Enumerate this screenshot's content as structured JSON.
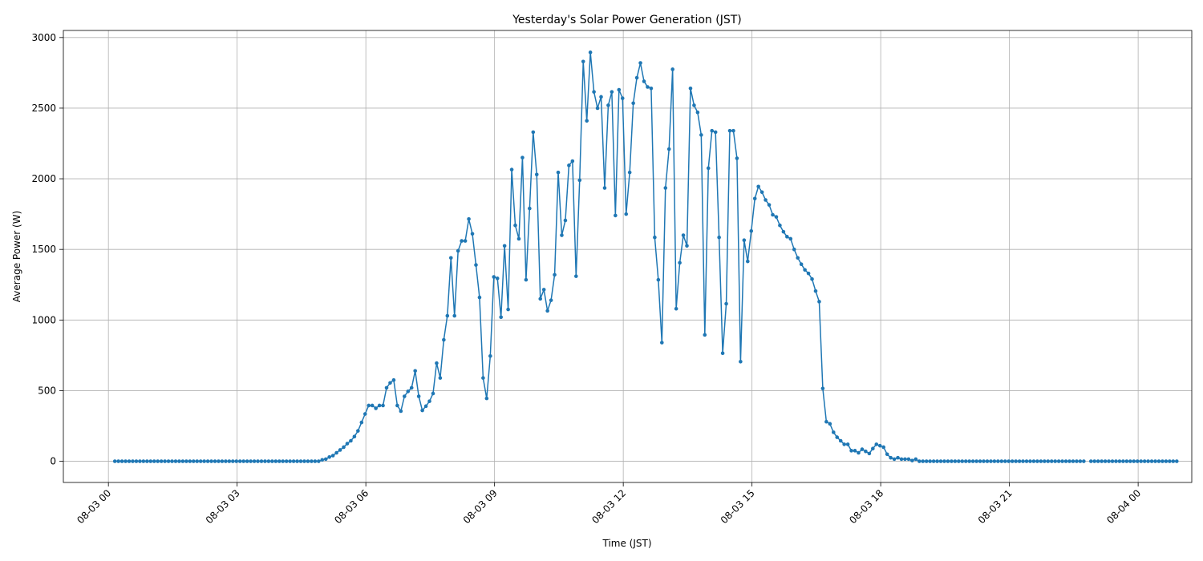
{
  "chart_data": {
    "type": "line",
    "title": "Yesterday's Solar Power Generation (JST)",
    "xlabel": "Time (JST)",
    "ylabel": "Average Power (W)",
    "x_tick_labels": [
      "08-03 00",
      "08-03 03",
      "08-03 06",
      "08-03 09",
      "08-03 12",
      "08-03 15",
      "08-03 18",
      "08-03 21",
      "08-04 00"
    ],
    "y_ticks": [
      0,
      500,
      1000,
      1500,
      2000,
      2500,
      3000
    ],
    "xlim_hours": [
      -1.05,
      25.25
    ],
    "ylim": [
      -150,
      3050
    ],
    "grid": true,
    "marker": "dot",
    "color": "#1f77b4",
    "x_start_hour": 0.15,
    "x_step_minutes": 5,
    "series": [
      {
        "values": [
          0,
          0,
          0,
          0,
          0,
          0,
          0,
          0,
          0,
          0,
          0,
          0,
          0,
          0,
          0,
          0,
          0,
          0,
          0,
          0,
          0,
          0,
          0,
          0,
          0,
          0,
          0,
          0,
          0,
          0,
          0,
          0,
          0,
          0,
          0,
          0,
          0,
          0,
          0,
          0,
          0,
          0,
          0,
          0,
          0,
          0,
          0,
          0,
          0,
          0,
          0,
          0,
          0,
          0,
          0,
          0,
          0,
          0,
          10,
          15,
          30,
          40,
          60,
          80,
          100,
          125,
          145,
          175,
          215,
          275,
          335,
          395,
          395,
          375,
          395,
          395,
          520,
          555,
          575,
          395,
          355,
          460,
          495,
          520,
          640,
          460,
          360,
          390,
          425,
          480,
          695,
          590,
          860,
          1030,
          1440,
          1030,
          1490,
          1560,
          1560,
          1715,
          1610,
          1390,
          1160,
          590,
          445,
          745,
          1305,
          1295,
          1020,
          1525,
          1075,
          2065,
          1670,
          1575,
          2150,
          1285,
          1790,
          2330,
          2030,
          1150,
          1215,
          1065,
          1140,
          1320,
          2045,
          1600,
          1705,
          2095,
          2125,
          1310,
          1990,
          2830,
          2410,
          2895,
          2615,
          2500,
          2580,
          1935,
          2520,
          2615,
          1740,
          2630,
          2570,
          1750,
          2045,
          2535,
          2715,
          2820,
          2690,
          2650,
          2640,
          1585,
          1285,
          840,
          1935,
          2210,
          2775,
          1080,
          1405,
          1600,
          1525,
          2640,
          2520,
          2470,
          2310,
          895,
          2075,
          2340,
          2330,
          1585,
          765,
          1115,
          2340,
          2340,
          2145,
          705,
          1565,
          1415,
          1630,
          1860,
          1945,
          1905,
          1850,
          1815,
          1745,
          1730,
          1670,
          1625,
          1590,
          1575,
          1500,
          1440,
          1395,
          1355,
          1330,
          1290,
          1205,
          1130,
          515,
          280,
          265,
          205,
          170,
          145,
          120,
          120,
          75,
          75,
          60,
          85,
          70,
          55,
          90,
          120,
          110,
          100,
          50,
          25,
          15,
          25,
          15,
          15,
          15,
          5,
          15,
          0,
          0,
          0,
          0,
          0,
          0,
          0,
          0,
          0,
          0,
          0,
          0,
          0,
          0,
          0,
          0,
          0,
          0,
          0,
          0,
          0,
          0,
          0,
          0,
          0,
          0,
          0,
          0,
          0,
          0,
          0,
          0,
          0,
          0,
          0,
          0,
          0,
          0,
          0,
          0,
          0,
          0,
          0,
          0,
          0,
          0,
          0,
          null,
          0,
          0,
          0,
          0,
          0,
          0,
          0,
          0,
          0,
          0,
          0,
          0,
          0,
          0,
          0,
          0,
          0,
          0,
          0,
          0,
          0,
          0,
          0,
          0,
          0
        ]
      }
    ]
  }
}
